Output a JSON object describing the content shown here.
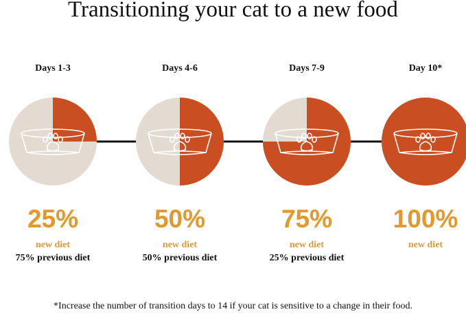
{
  "title": "Transitioning your cat to a new food",
  "colors": {
    "new_food": "#c94f22",
    "old_food": "#e3dbd1",
    "percent": "#e3972c",
    "new_diet_text": "#dc9a3e",
    "connector": "#111111"
  },
  "icon": "cat-food-bowl-with-paw-icon",
  "stages": [
    {
      "label": "Days 1-3",
      "new_percent": 25,
      "percent_text": "25%",
      "new_text": "new diet",
      "previous_text": "75% previous diet"
    },
    {
      "label": "Days 4-6",
      "new_percent": 50,
      "percent_text": "50%",
      "new_text": "new diet",
      "previous_text": "50% previous diet"
    },
    {
      "label": "Days 7-9",
      "new_percent": 75,
      "percent_text": "75%",
      "new_text": "new diet",
      "previous_text": "25% previous diet"
    },
    {
      "label": "Day 10*",
      "new_percent": 100,
      "percent_text": "100%",
      "new_text": "new diet",
      "previous_text": null
    }
  ],
  "footnote": "*Increase the number of transition days to 14 if your cat is sensitive to a change in their food."
}
